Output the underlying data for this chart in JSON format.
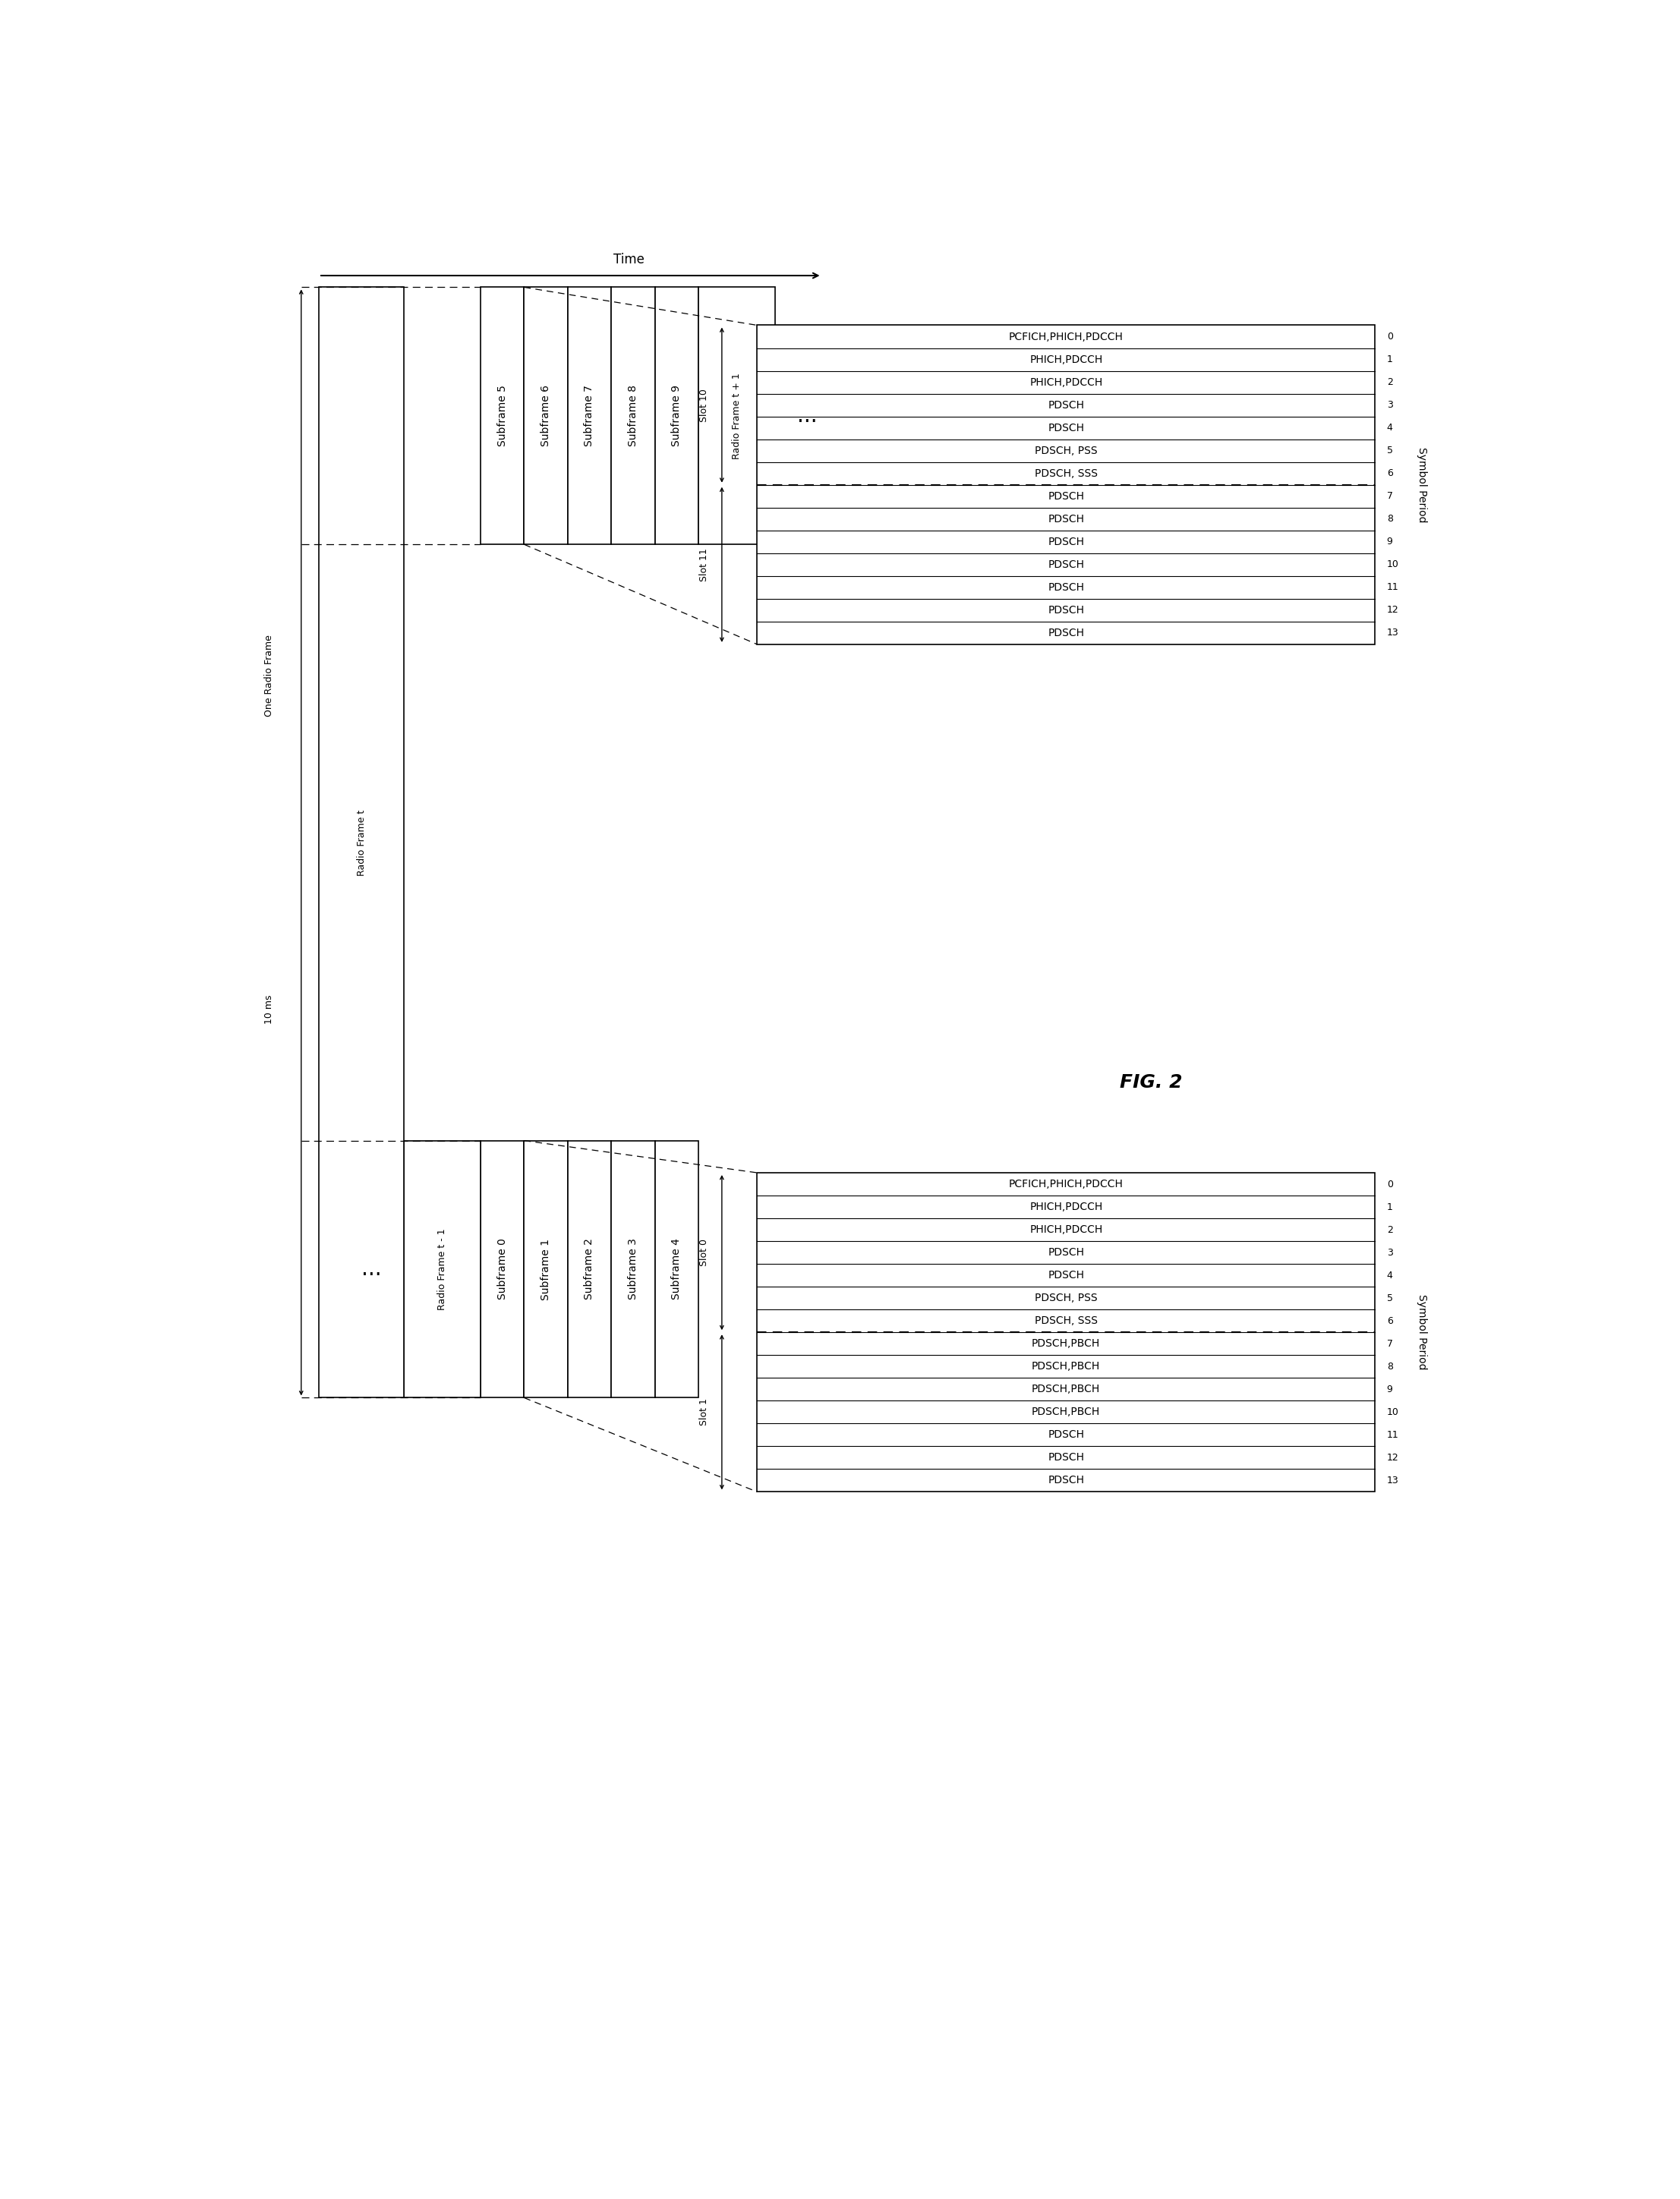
{
  "fig_width": 22.13,
  "fig_height": 28.97,
  "bg_color": "#ffffff",
  "title": "FIG. 2",
  "subframes_top": [
    "Subframe 5",
    "Subframe 6",
    "Subframe 7",
    "Subframe 8",
    "Subframe 9"
  ],
  "subframes_bottom": [
    "Subframe 0",
    "Subframe 1",
    "Subframe 2",
    "Subframe 3",
    "Subframe 4"
  ],
  "slot0_labels": [
    "PCFICH,PHICH,PDCCH",
    "PHICH,PDCCH",
    "PHICH,PDCCH",
    "PDSCH",
    "PDSCH",
    "PDSCH, PSS",
    "PDSCH, SSS",
    "PDSCH,PBCH",
    "PDSCH,PBCH",
    "PDSCH,PBCH",
    "PDSCH,PBCH",
    "PDSCH",
    "PDSCH",
    "PDSCH"
  ],
  "slot10_labels": [
    "PCFICH,PHICH,PDCCH",
    "PHICH,PDCCH",
    "PHICH,PDCCH",
    "PDSCH",
    "PDSCH",
    "PDSCH, PSS",
    "PDSCH, SSS",
    "PDSCH",
    "PDSCH",
    "PDSCH",
    "PDSCH",
    "PDSCH",
    "PDSCH",
    "PDSCH"
  ],
  "slot0_name": "Slot 0",
  "slot1_name": "Slot 1",
  "slot10_name": "Slot 10",
  "slot11_name": "Slot 11",
  "radio_frame_t_label": "Radio Frame t",
  "radio_frame_t1_label": "Radio Frame t + 1",
  "radio_frame_tm1_label": "Radio Frame t - 1",
  "one_radio_frame_label": "One Radio Frame",
  "ten_ms_label": "10 ms",
  "time_label": "Time",
  "symbol_period_label": "Symbol Period",
  "border_color": "#000000",
  "fill_color": "#ffffff",
  "text_color": "#000000"
}
